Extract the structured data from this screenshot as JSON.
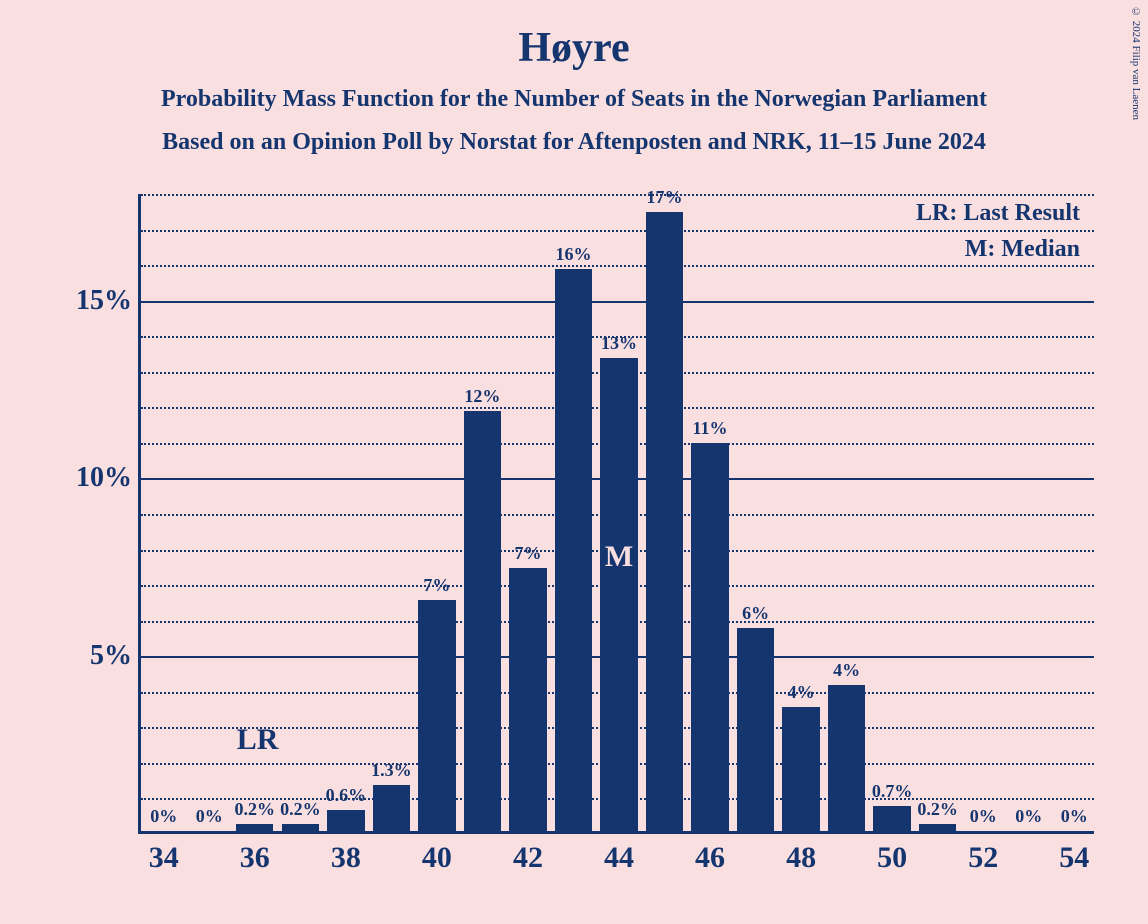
{
  "copyright": "© 2024 Filip van Laenen",
  "title": "Høyre",
  "subtitle1": "Probability Mass Function for the Number of Seats in the Norwegian Parliament",
  "subtitle2": "Based on an Opinion Poll by Norstat for Aftenposten and NRK, 11–15 June 2024",
  "legend_lr": "LR: Last Result",
  "legend_m": "M: Median",
  "lr_marker": "LR",
  "m_marker": "M",
  "chart": {
    "type": "bar",
    "background_color": "#fadfe0",
    "bar_color": "#15356f",
    "axis_color": "#15356f",
    "text_color": "#15356f",
    "x_min": 33.5,
    "x_max": 54.5,
    "y_min": 0,
    "y_max": 18,
    "y_major_ticks": [
      5,
      10,
      15
    ],
    "y_major_labels": [
      "5%",
      "10%",
      "15%"
    ],
    "y_minor_step": 1,
    "x_tick_positions": [
      34,
      36,
      38,
      40,
      42,
      44,
      46,
      48,
      50,
      52,
      54
    ],
    "x_tick_labels": [
      "34",
      "36",
      "38",
      "40",
      "42",
      "44",
      "46",
      "48",
      "50",
      "52",
      "54"
    ],
    "bar_width": 0.82,
    "lr_seat": 36,
    "median_seat": 44,
    "bars": [
      {
        "x": 34,
        "value": 0,
        "label": "0%"
      },
      {
        "x": 35,
        "value": 0,
        "label": "0%"
      },
      {
        "x": 36,
        "value": 0.2,
        "label": "0.2%"
      },
      {
        "x": 37,
        "value": 0.2,
        "label": "0.2%"
      },
      {
        "x": 38,
        "value": 0.6,
        "label": "0.6%"
      },
      {
        "x": 39,
        "value": 1.3,
        "label": "1.3%"
      },
      {
        "x": 40,
        "value": 6.5,
        "label": "7%"
      },
      {
        "x": 41,
        "value": 11.8,
        "label": "12%"
      },
      {
        "x": 42,
        "value": 7.4,
        "label": "7%"
      },
      {
        "x": 43,
        "value": 15.8,
        "label": "16%"
      },
      {
        "x": 44,
        "value": 13.3,
        "label": "13%"
      },
      {
        "x": 45,
        "value": 17.4,
        "label": "17%"
      },
      {
        "x": 46,
        "value": 10.9,
        "label": "11%"
      },
      {
        "x": 47,
        "value": 5.7,
        "label": "6%"
      },
      {
        "x": 48,
        "value": 3.5,
        "label": "4%"
      },
      {
        "x": 49,
        "value": 4.1,
        "label": "4%"
      },
      {
        "x": 50,
        "value": 0.7,
        "label": "0.7%"
      },
      {
        "x": 51,
        "value": 0.2,
        "label": "0.2%"
      },
      {
        "x": 52,
        "value": 0,
        "label": "0%"
      },
      {
        "x": 53,
        "value": 0,
        "label": "0%"
      },
      {
        "x": 54,
        "value": 0,
        "label": "0%"
      }
    ]
  }
}
